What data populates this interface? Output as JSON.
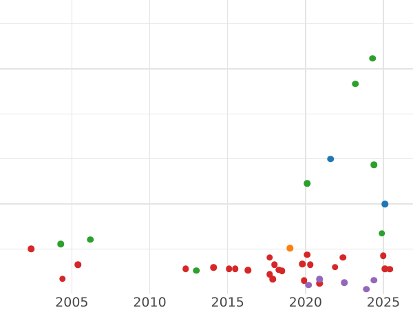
{
  "chart_data": {
    "type": "scatter",
    "title": "",
    "xlabel": "",
    "ylabel": "",
    "grid": true,
    "legend_position": "none",
    "x_tick_labels": [
      "2005",
      "2010",
      "2015",
      "2020",
      "2025"
    ],
    "x_tick_years": [
      2005,
      2010,
      2015,
      2020,
      2025
    ],
    "x_range_years": [
      2000.39,
      2026.9
    ],
    "y_range_units": [
      0,
      6.53
    ],
    "y_gridline_units": [
      1,
      2,
      3,
      4,
      5,
      6
    ],
    "y_axis_labels_visible": false,
    "series": [
      {
        "name": "red-series",
        "color": "#d62728",
        "points": [
          [
            2002.4,
            1.0
          ],
          [
            2004.4,
            0.34
          ],
          [
            2005.4,
            0.65
          ],
          [
            2012.3,
            0.56
          ],
          [
            2014.1,
            0.59
          ],
          [
            2015.1,
            0.56
          ],
          [
            2015.5,
            0.56
          ],
          [
            2016.3,
            0.53
          ],
          [
            2017.7,
            0.81
          ],
          [
            2017.7,
            0.44
          ],
          [
            2017.9,
            0.33
          ],
          [
            2018.0,
            0.65
          ],
          [
            2018.3,
            0.54
          ],
          [
            2018.5,
            0.51
          ],
          [
            2019.8,
            0.67
          ],
          [
            2019.9,
            0.3
          ],
          [
            2020.1,
            0.87
          ],
          [
            2020.3,
            0.65
          ],
          [
            2020.9,
            0.24
          ],
          [
            2021.9,
            0.6
          ],
          [
            2022.4,
            0.81
          ],
          [
            2025.0,
            0.85
          ],
          [
            2025.1,
            0.56
          ],
          [
            2025.4,
            0.55
          ]
        ]
      },
      {
        "name": "green-series",
        "color": "#2ca02c",
        "points": [
          [
            2004.3,
            1.11
          ],
          [
            2006.2,
            1.21
          ],
          [
            2013.0,
            0.52
          ],
          [
            2020.1,
            2.46
          ],
          [
            2023.2,
            4.67
          ],
          [
            2024.3,
            5.23
          ],
          [
            2024.4,
            2.87
          ],
          [
            2024.9,
            1.35
          ]
        ]
      },
      {
        "name": "blue-series",
        "color": "#1f77b4",
        "points": [
          [
            2021.6,
            3.0
          ],
          [
            2025.1,
            2.0
          ]
        ]
      },
      {
        "name": "orange-series",
        "color": "#ff7f0e",
        "points": [
          [
            2019.0,
            1.02
          ]
        ]
      },
      {
        "name": "purple-series",
        "color": "#9467bd",
        "points": [
          [
            2020.2,
            0.2
          ],
          [
            2020.9,
            0.33
          ],
          [
            2022.5,
            0.25
          ],
          [
            2023.9,
            0.11
          ],
          [
            2024.4,
            0.31
          ]
        ]
      }
    ],
    "style": {
      "background_color": "#ffffff",
      "gridline_color": "#e4e4e4",
      "tick_label_color": "#474747"
    }
  }
}
